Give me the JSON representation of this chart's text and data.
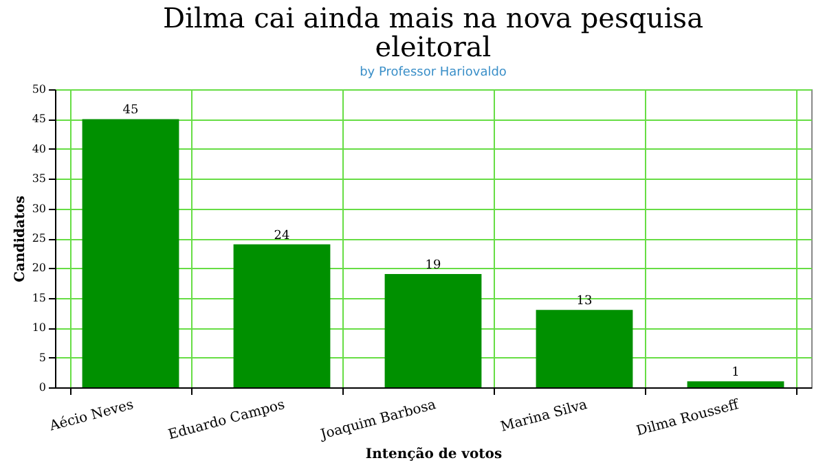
{
  "chart_data": {
    "type": "bar",
    "title": [
      "Dilma cai ainda mais na nova pesquisa",
      "eleitoral"
    ],
    "subtitle": "by Professor Hariovaldo",
    "xlabel": "Intenção de votos",
    "ylabel": "Candidatos",
    "categories": [
      "Aécio Neves",
      "Eduardo Campos",
      "Joaquim Barbosa",
      "Marina Silva",
      "Dilma Rousseff"
    ],
    "values": [
      45,
      24,
      19,
      13,
      1
    ],
    "color": "#009000",
    "ylim": [
      0,
      50
    ],
    "yticks": [
      0,
      5,
      10,
      15,
      20,
      25,
      30,
      35,
      40,
      45,
      50
    ],
    "grid": true,
    "data_labels": true
  }
}
